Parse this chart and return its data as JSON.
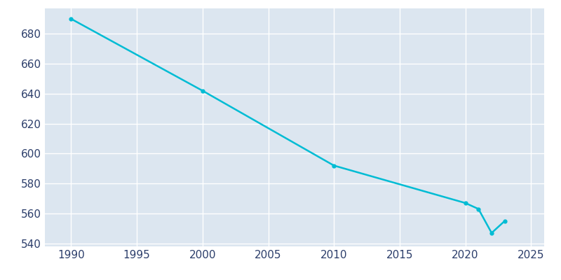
{
  "years": [
    1990,
    2000,
    2010,
    2020,
    2021,
    2022,
    2023
  ],
  "population": [
    690,
    642,
    592,
    567,
    563,
    547,
    555
  ],
  "line_color": "#00BCD4",
  "axes_background_color": "#DCE6F0",
  "figure_background_color": "#FFFFFF",
  "grid_color": "#FFFFFF",
  "text_color": "#2C3E6B",
  "xlim": [
    1988,
    2026
  ],
  "ylim": [
    538,
    697
  ],
  "xticks": [
    1990,
    1995,
    2000,
    2005,
    2010,
    2015,
    2020,
    2025
  ],
  "yticks": [
    540,
    560,
    580,
    600,
    620,
    640,
    660,
    680
  ],
  "line_width": 1.8,
  "marker": "o",
  "marker_size": 3.5,
  "tick_labelsize": 11
}
